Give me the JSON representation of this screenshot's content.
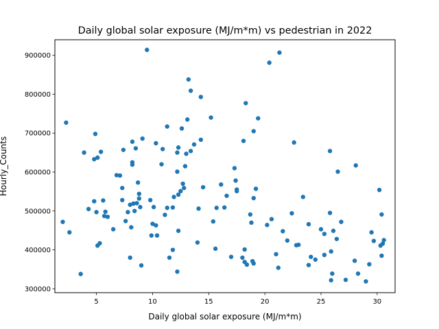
{
  "chart_data": {
    "type": "scatter",
    "title": "Daily global solar exposure (MJ/m*m) vs pedestrian in 2022",
    "xlabel": "Daily global solar exposure (MJ/m*m)",
    "ylabel": "Hourly_Counts",
    "xlim": [
      1.3,
      31.6
    ],
    "ylim": [
      290000,
      940000
    ],
    "xticks": [
      5,
      10,
      15,
      20,
      25,
      30
    ],
    "xtick_labels": [
      "5",
      "10",
      "15",
      "20",
      "25",
      "30"
    ],
    "yticks": [
      300000,
      400000,
      500000,
      600000,
      700000,
      800000,
      900000
    ],
    "ytick_labels": [
      "300000",
      "400000",
      "500000",
      "600000",
      "700000",
      "800000",
      "900000"
    ],
    "grid": false,
    "marker_color": "#1f77b4",
    "points": [
      [
        2.0,
        472000
      ],
      [
        2.3,
        727000
      ],
      [
        2.6,
        445000
      ],
      [
        3.6,
        338000
      ],
      [
        3.9,
        650000
      ],
      [
        4.3,
        505000
      ],
      [
        4.8,
        525000
      ],
      [
        4.8,
        633000
      ],
      [
        4.9,
        698000
      ],
      [
        5.0,
        497000
      ],
      [
        5.1,
        637000
      ],
      [
        5.1,
        411000
      ],
      [
        5.3,
        417000
      ],
      [
        5.4,
        652000
      ],
      [
        5.6,
        527000
      ],
      [
        5.7,
        487000
      ],
      [
        5.8,
        498000
      ],
      [
        6.0,
        485000
      ],
      [
        6.5,
        453000
      ],
      [
        6.8,
        592000
      ],
      [
        7.1,
        591000
      ],
      [
        7.3,
        528000
      ],
      [
        7.3,
        559000
      ],
      [
        7.4,
        657000
      ],
      [
        7.6,
        474000
      ],
      [
        7.8,
        497000
      ],
      [
        8.0,
        380000
      ],
      [
        8.0,
        516000
      ],
      [
        8.1,
        458000
      ],
      [
        8.2,
        678000
      ],
      [
        8.2,
        625000
      ],
      [
        8.2,
        619000
      ],
      [
        8.3,
        519000
      ],
      [
        8.4,
        500000
      ],
      [
        8.5,
        661000
      ],
      [
        8.6,
        520000
      ],
      [
        8.7,
        573000
      ],
      [
        8.8,
        532000
      ],
      [
        8.8,
        544000
      ],
      [
        8.9,
        510000
      ],
      [
        9.0,
        360000
      ],
      [
        9.1,
        686000
      ],
      [
        9.5,
        914000
      ],
      [
        9.8,
        528000
      ],
      [
        9.9,
        437000
      ],
      [
        10.0,
        467000
      ],
      [
        10.1,
        510000
      ],
      [
        10.3,
        674000
      ],
      [
        10.3,
        463000
      ],
      [
        10.4,
        437000
      ],
      [
        10.8,
        620000
      ],
      [
        10.9,
        659000
      ],
      [
        11.1,
        490000
      ],
      [
        11.3,
        717000
      ],
      [
        11.3,
        508000
      ],
      [
        11.5,
        380000
      ],
      [
        11.8,
        400000
      ],
      [
        11.8,
        509000
      ],
      [
        11.9,
        536000
      ],
      [
        12.2,
        344000
      ],
      [
        12.2,
        650000
      ],
      [
        12.2,
        601000
      ],
      [
        12.3,
        542000
      ],
      [
        12.3,
        449000
      ],
      [
        12.3,
        663000
      ],
      [
        12.5,
        551000
      ],
      [
        12.6,
        712000
      ],
      [
        12.7,
        570000
      ],
      [
        12.8,
        559000
      ],
      [
        12.9,
        615000
      ],
      [
        13.0,
        647000
      ],
      [
        13.1,
        735000
      ],
      [
        13.2,
        838000
      ],
      [
        13.4,
        809000
      ],
      [
        13.4,
        654000
      ],
      [
        13.7,
        671000
      ],
      [
        14.0,
        419000
      ],
      [
        14.1,
        506000
      ],
      [
        14.3,
        793000
      ],
      [
        14.3,
        683000
      ],
      [
        14.5,
        561000
      ],
      [
        15.2,
        740000
      ],
      [
        15.4,
        473000
      ],
      [
        15.6,
        403000
      ],
      [
        15.7,
        508000
      ],
      [
        16.1,
        568000
      ],
      [
        16.4,
        509000
      ],
      [
        16.6,
        539000
      ],
      [
        17.0,
        382000
      ],
      [
        17.3,
        610000
      ],
      [
        17.4,
        578000
      ],
      [
        17.5,
        551000
      ],
      [
        17.5,
        555000
      ],
      [
        18.0,
        380000
      ],
      [
        18.1,
        680000
      ],
      [
        18.2,
        401000
      ],
      [
        18.2,
        369000
      ],
      [
        18.3,
        777000
      ],
      [
        18.4,
        362000
      ],
      [
        18.7,
        491000
      ],
      [
        18.8,
        470000
      ],
      [
        18.9,
        371000
      ],
      [
        19.0,
        705000
      ],
      [
        19.0,
        533000
      ],
      [
        19.0,
        365000
      ],
      [
        19.2,
        557000
      ],
      [
        19.4,
        738000
      ],
      [
        20.2,
        464000
      ],
      [
        20.4,
        881000
      ],
      [
        20.6,
        479000
      ],
      [
        21.0,
        389000
      ],
      [
        21.2,
        354000
      ],
      [
        21.3,
        907000
      ],
      [
        21.6,
        448000
      ],
      [
        22.0,
        424000
      ],
      [
        22.4,
        494000
      ],
      [
        22.6,
        676000
      ],
      [
        22.8,
        412000
      ],
      [
        23.0,
        413000
      ],
      [
        23.4,
        536000
      ],
      [
        23.9,
        466000
      ],
      [
        23.9,
        361000
      ],
      [
        24.1,
        382000
      ],
      [
        24.5,
        375000
      ],
      [
        25.0,
        453000
      ],
      [
        25.3,
        441000
      ],
      [
        25.3,
        387000
      ],
      [
        25.8,
        654000
      ],
      [
        25.8,
        495000
      ],
      [
        25.9,
        396000
      ],
      [
        25.9,
        322000
      ],
      [
        26.0,
        339000
      ],
      [
        26.1,
        449000
      ],
      [
        26.4,
        428000
      ],
      [
        26.5,
        601000
      ],
      [
        26.8,
        472000
      ],
      [
        27.2,
        323000
      ],
      [
        28.0,
        372000
      ],
      [
        28.1,
        617000
      ],
      [
        28.3,
        339000
      ],
      [
        29.0,
        319000
      ],
      [
        29.3,
        363000
      ],
      [
        29.5,
        445000
      ],
      [
        29.7,
        423000
      ],
      [
        30.2,
        554000
      ],
      [
        30.3,
        411000
      ],
      [
        30.4,
        385000
      ],
      [
        30.4,
        491000
      ],
      [
        30.5,
        416000
      ],
      [
        30.6,
        425000
      ]
    ]
  }
}
